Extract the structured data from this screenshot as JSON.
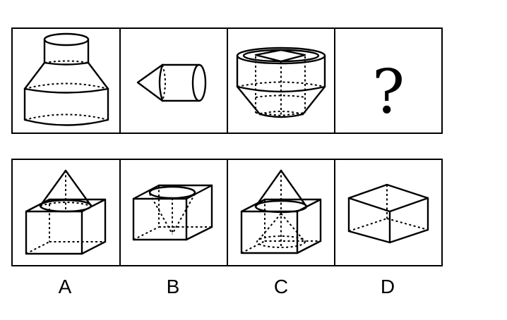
{
  "question": {
    "mark": "?"
  },
  "options": [
    {
      "label": "A",
      "icon": "cone-on-cube-icon"
    },
    {
      "label": "B",
      "icon": "cube-with-inverted-cone-icon"
    },
    {
      "label": "C",
      "icon": "cone-through-cube-icon"
    },
    {
      "label": "D",
      "icon": "cube-icon"
    }
  ]
}
